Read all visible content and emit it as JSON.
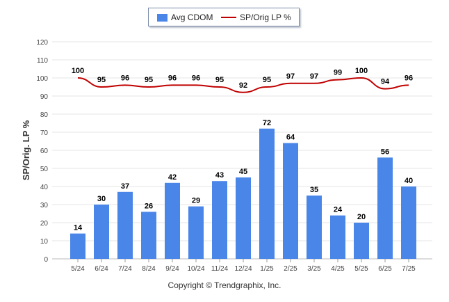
{
  "colors": {
    "bar": "#4a86e8",
    "line": "#c00000",
    "grid": "#e4e4e4",
    "axis": "#555555"
  },
  "legend": {
    "bar_label": "Avg CDOM",
    "line_label": "SP/Orig LP %"
  },
  "footer": "Copyright © Trendgraphix, Inc.",
  "chart_data": {
    "type": "bar",
    "categories": [
      "5/24",
      "6/24",
      "7/24",
      "8/24",
      "9/24",
      "10/24",
      "11/24",
      "12/24",
      "1/25",
      "2/25",
      "3/25",
      "4/25",
      "5/25",
      "6/25",
      "7/25"
    ],
    "series": [
      {
        "name": "Avg CDOM",
        "type": "bar",
        "values": [
          14,
          30,
          37,
          26,
          42,
          29,
          43,
          45,
          72,
          64,
          35,
          24,
          20,
          56,
          40
        ]
      },
      {
        "name": "SP/Orig LP %",
        "type": "line",
        "values": [
          100,
          95,
          96,
          95,
          96,
          96,
          95,
          92,
          95,
          97,
          97,
          99,
          100,
          94,
          96
        ]
      }
    ],
    "ylabel": "SP/Orig. LP %",
    "xlabel": "",
    "ylim": [
      0,
      120
    ],
    "yticks": [
      0,
      10,
      20,
      30,
      40,
      50,
      60,
      70,
      80,
      90,
      100,
      110,
      120
    ],
    "grid": true,
    "legend_position": "top-center"
  }
}
